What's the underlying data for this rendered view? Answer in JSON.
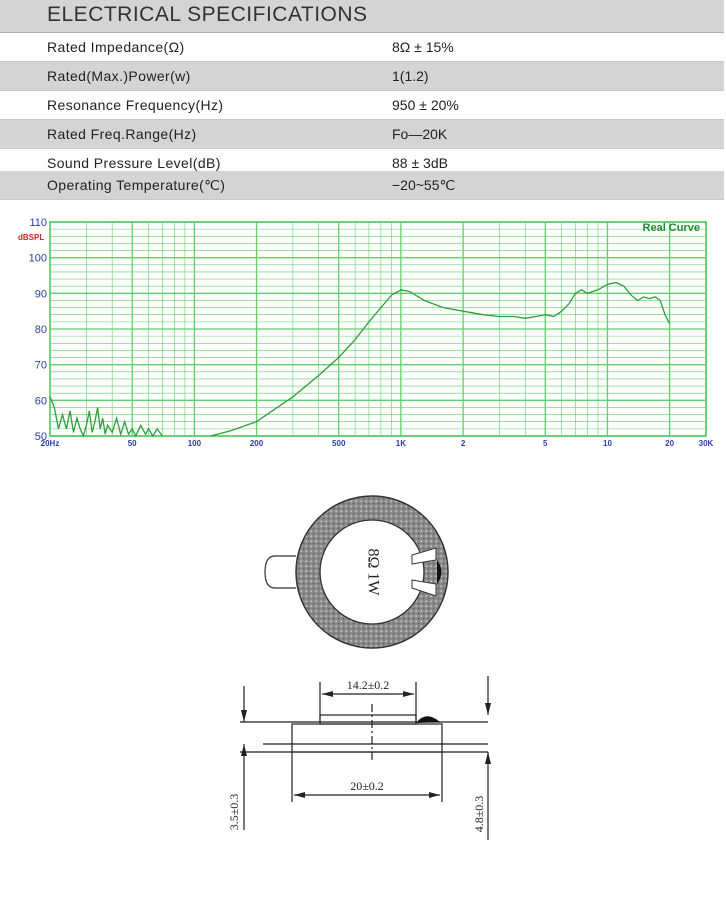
{
  "specs": {
    "title": "ELECTRICAL SPECIFICATIONS",
    "rows": [
      {
        "param": "Rated  Impedance(Ω)",
        "value": "8Ω ± 15%"
      },
      {
        "param": "Rated(Max.)Power(w)",
        "value": "1(1.2)"
      },
      {
        "param": "Resonance  Frequency(Hz)",
        "value": "950 ± 20%"
      },
      {
        "param": "Rated  Freq.Range(Hz)",
        "value": "Fo—20K"
      },
      {
        "param": "Sound  Pressure  Level(dB)",
        "value": "88 ± 3dB"
      },
      {
        "param": "Operating  Temperature(℃)",
        "value": "−20~55℃"
      }
    ]
  },
  "chart_data": {
    "type": "line",
    "title": "Real Curve",
    "ylabel": "dBSPL",
    "xscale": "log",
    "xlim": [
      20,
      30000
    ],
    "ylim": [
      50,
      110
    ],
    "grid": true,
    "yticks": [
      {
        "v": 50,
        "t": "50"
      },
      {
        "v": 60,
        "t": "60"
      },
      {
        "v": 70,
        "t": "70"
      },
      {
        "v": 80,
        "t": "80"
      },
      {
        "v": 90,
        "t": "90"
      },
      {
        "v": 100,
        "t": "100"
      },
      {
        "v": 110,
        "t": "110"
      }
    ],
    "xticks": [
      {
        "v": 20,
        "t": "20Hz"
      },
      {
        "v": 50,
        "t": "50"
      },
      {
        "v": 100,
        "t": "100"
      },
      {
        "v": 200,
        "t": "200"
      },
      {
        "v": 500,
        "t": "500"
      },
      {
        "v": 1000,
        "t": "1K"
      },
      {
        "v": 2000,
        "t": "2"
      },
      {
        "v": 5000,
        "t": "5"
      },
      {
        "v": 10000,
        "t": "10"
      },
      {
        "v": 20000,
        "t": "20"
      },
      {
        "v": 30000,
        "t": "30K"
      }
    ],
    "series": [
      {
        "values": [
          [
            120,
            50
          ],
          [
            150,
            51.5
          ],
          [
            200,
            54
          ],
          [
            300,
            61
          ],
          [
            400,
            67
          ],
          [
            500,
            72
          ],
          [
            600,
            77
          ],
          [
            700,
            82
          ],
          [
            800,
            86
          ],
          [
            900,
            89.5
          ],
          [
            1000,
            91
          ],
          [
            1100,
            90.5
          ],
          [
            1300,
            88
          ],
          [
            1600,
            86
          ],
          [
            2000,
            85
          ],
          [
            2500,
            84
          ],
          [
            3000,
            83.5
          ],
          [
            3500,
            83.5
          ],
          [
            4000,
            83
          ],
          [
            4500,
            83.5
          ],
          [
            5000,
            84
          ],
          [
            5500,
            83.5
          ],
          [
            6000,
            85
          ],
          [
            6500,
            87
          ],
          [
            7000,
            90
          ],
          [
            7500,
            91
          ],
          [
            8000,
            90
          ],
          [
            9000,
            91
          ],
          [
            10000,
            92.5
          ],
          [
            11000,
            93
          ],
          [
            12000,
            92
          ],
          [
            13000,
            89.5
          ],
          [
            14000,
            88
          ],
          [
            15000,
            89
          ],
          [
            16000,
            88.5
          ],
          [
            17000,
            89
          ],
          [
            18000,
            88
          ],
          [
            19000,
            84
          ],
          [
            20000,
            81.5
          ]
        ]
      },
      {
        "values": [
          [
            20,
            61
          ],
          [
            21,
            58
          ],
          [
            22,
            52
          ],
          [
            23,
            56
          ],
          [
            24,
            52
          ],
          [
            25,
            57
          ],
          [
            26,
            51
          ],
          [
            27,
            55
          ],
          [
            28,
            52
          ],
          [
            29,
            50
          ],
          [
            30,
            53
          ],
          [
            31,
            57
          ],
          [
            32,
            51
          ],
          [
            33,
            54
          ],
          [
            34,
            58
          ],
          [
            35,
            52
          ],
          [
            36,
            55
          ],
          [
            37,
            50.5
          ],
          [
            38,
            53
          ],
          [
            40,
            51
          ],
          [
            42,
            55
          ],
          [
            44,
            50.5
          ],
          [
            46,
            54
          ],
          [
            48,
            50.5
          ],
          [
            50,
            52
          ],
          [
            52,
            50
          ],
          [
            55,
            53
          ],
          [
            58,
            50.5
          ],
          [
            60,
            52
          ],
          [
            63,
            50
          ],
          [
            66,
            52
          ],
          [
            70,
            50
          ]
        ]
      }
    ]
  },
  "drawing": {
    "face_label": "8Ω  1W",
    "dim_inner": "14.2±0.2",
    "dim_outer": "20±0.2",
    "dim_left": "3.5±0.3",
    "dim_right": "4.8±0.3"
  }
}
